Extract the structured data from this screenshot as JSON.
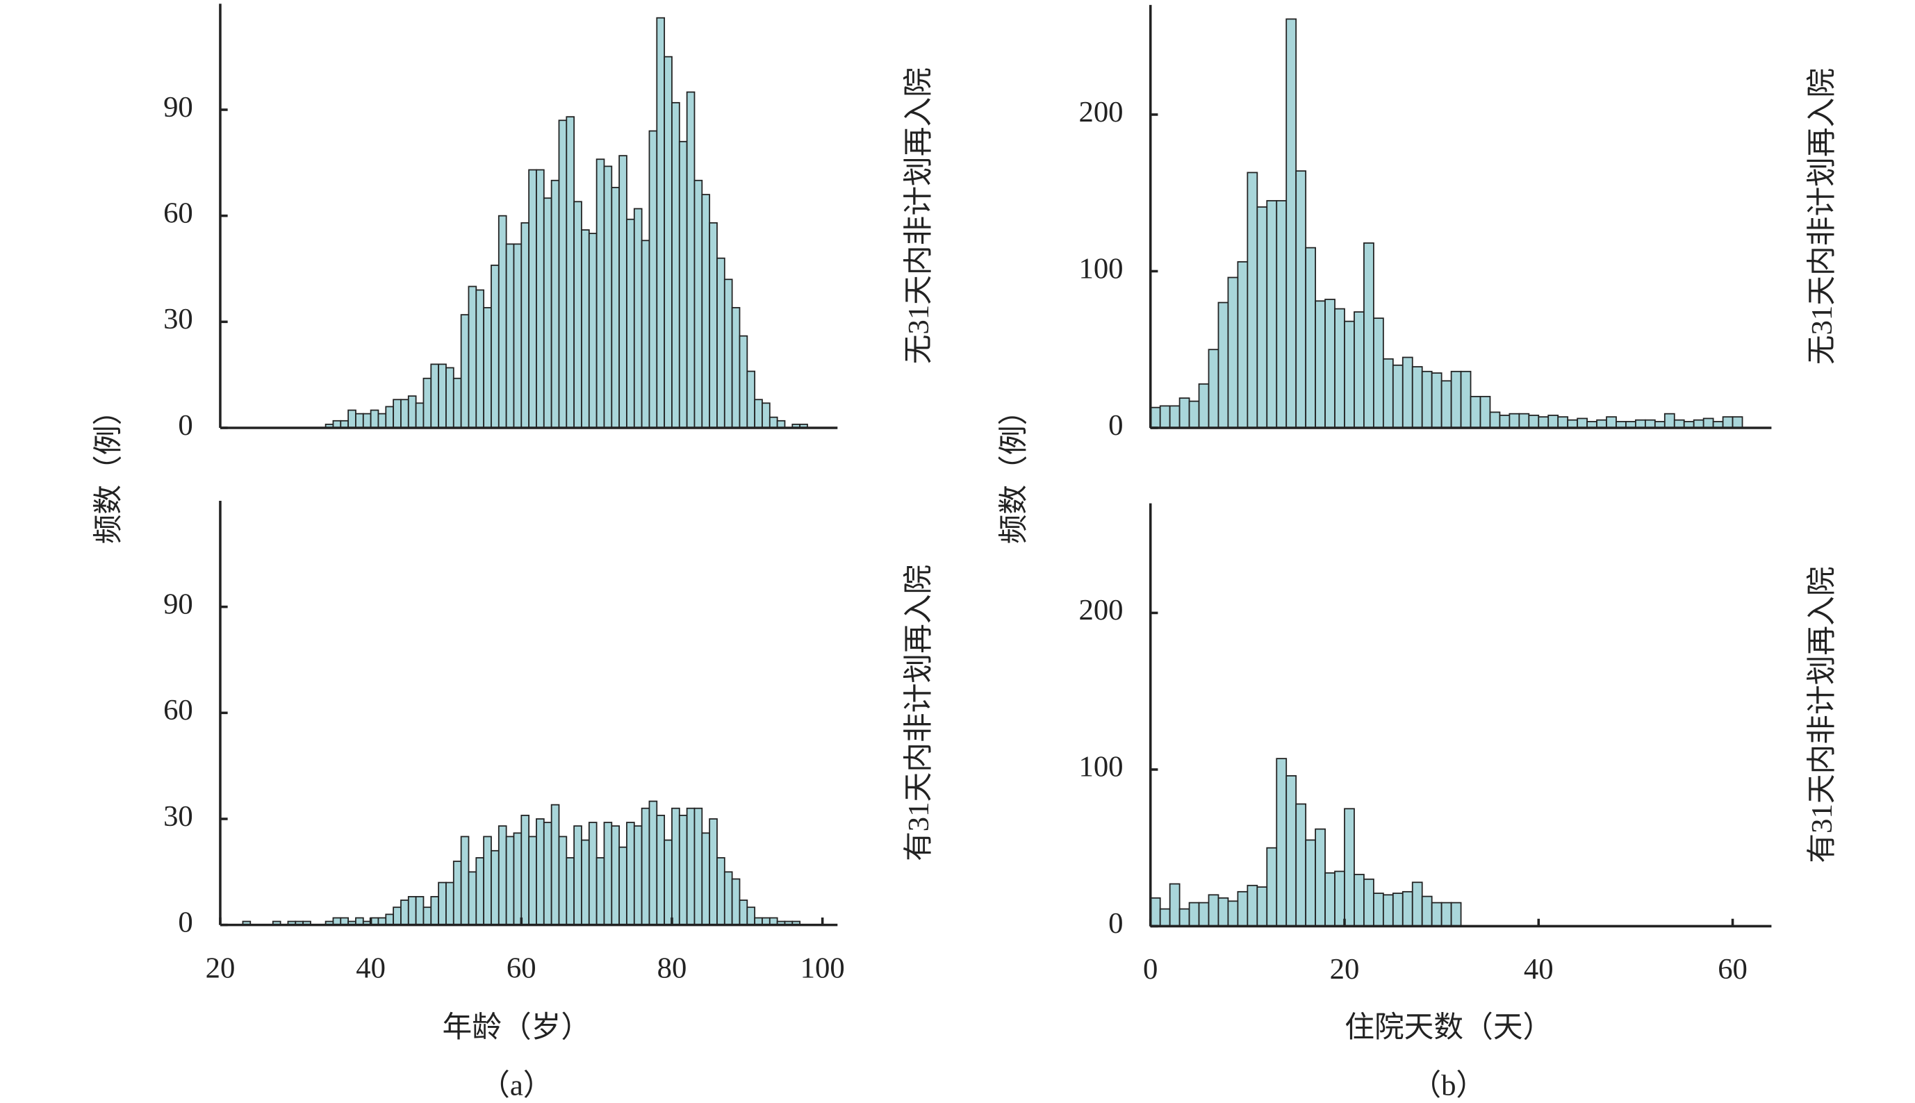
{
  "chart_data": [
    {
      "type": "histogram",
      "title": "无31天内非计划再入院",
      "ylabel": "频数（例）",
      "color": "#a9d6da",
      "bins": [
        20,
        21,
        22,
        23,
        24,
        25,
        26,
        27,
        28,
        29,
        30,
        31,
        32,
        33,
        34,
        35,
        36,
        37,
        38,
        39,
        40,
        41,
        42,
        43,
        44,
        45,
        46,
        47,
        48,
        49,
        50,
        51,
        52,
        53,
        54,
        55,
        56,
        57,
        58,
        59,
        60,
        61,
        62,
        63,
        64,
        65,
        66,
        67,
        68,
        69,
        70,
        71,
        72,
        73,
        74,
        75,
        76,
        77,
        78,
        79,
        80,
        81,
        82,
        83,
        84,
        85,
        86,
        87,
        88,
        89,
        90,
        91,
        92,
        93,
        94,
        95,
        96,
        97,
        98,
        99,
        100
      ],
      "values": [
        0,
        0,
        0,
        0,
        0,
        0,
        0,
        0,
        0,
        0,
        0,
        0,
        0,
        0,
        1,
        2,
        2,
        5,
        4,
        4,
        5,
        4,
        6,
        8,
        8,
        9,
        7,
        14,
        18,
        18,
        17,
        14,
        32,
        40,
        39,
        34,
        46,
        60,
        52,
        52,
        58,
        73,
        73,
        65,
        70,
        87,
        88,
        64,
        56,
        55,
        76,
        74,
        68,
        77,
        59,
        62,
        53,
        84,
        116,
        105,
        92,
        81,
        95,
        70,
        66,
        58,
        48,
        42,
        34,
        26,
        16,
        8,
        7,
        3,
        2,
        0,
        1,
        1,
        0,
        0
      ],
      "xlim": [
        20,
        102
      ],
      "ylim": [
        0,
        120
      ],
      "yticks": [
        0,
        30,
        60,
        90
      ]
    },
    {
      "type": "histogram",
      "title": "有31天内非计划再入院",
      "xlabel": "年龄（岁）",
      "caption": "（a）",
      "color": "#a9d6da",
      "bins": [
        20,
        21,
        22,
        23,
        24,
        25,
        26,
        27,
        28,
        29,
        30,
        31,
        32,
        33,
        34,
        35,
        36,
        37,
        38,
        39,
        40,
        41,
        42,
        43,
        44,
        45,
        46,
        47,
        48,
        49,
        50,
        51,
        52,
        53,
        54,
        55,
        56,
        57,
        58,
        59,
        60,
        61,
        62,
        63,
        64,
        65,
        66,
        67,
        68,
        69,
        70,
        71,
        72,
        73,
        74,
        75,
        76,
        77,
        78,
        79,
        80,
        81,
        82,
        83,
        84,
        85,
        86,
        87,
        88,
        89,
        90,
        91,
        92,
        93,
        94,
        95,
        96,
        97,
        98,
        99,
        100
      ],
      "values": [
        0,
        0,
        0,
        1,
        0,
        0,
        0,
        1,
        0,
        1,
        1,
        1,
        0,
        0,
        1,
        2,
        2,
        1,
        2,
        1,
        2,
        2,
        3,
        5,
        7,
        8,
        8,
        5,
        8,
        12,
        12,
        18,
        25,
        15,
        19,
        25,
        21,
        28,
        25,
        26,
        31,
        25,
        30,
        29,
        34,
        25,
        19,
        28,
        24,
        29,
        19,
        29,
        28,
        22,
        29,
        28,
        33,
        35,
        31,
        24,
        33,
        31,
        33,
        33,
        26,
        30,
        19,
        15,
        13,
        7,
        5,
        2,
        2,
        2,
        1,
        1,
        1,
        0,
        0,
        0
      ],
      "xlim": [
        20,
        102
      ],
      "ylim": [
        0,
        120
      ],
      "xticks": [
        20,
        40,
        60,
        80,
        100
      ],
      "yticks": [
        0,
        30,
        60,
        90
      ]
    },
    {
      "type": "histogram",
      "title": "无31天内非计划再入院",
      "ylabel": "频数（例）",
      "color": "#a9d6da",
      "bins": [
        0,
        1,
        2,
        3,
        4,
        5,
        6,
        7,
        8,
        9,
        10,
        11,
        12,
        13,
        14,
        15,
        16,
        17,
        18,
        19,
        20,
        21,
        22,
        23,
        24,
        25,
        26,
        27,
        28,
        29,
        30,
        31,
        32,
        33,
        34,
        35,
        36,
        37,
        38,
        39,
        40,
        41,
        42,
        43,
        44,
        45,
        46,
        47,
        48,
        49,
        50,
        51,
        52,
        53,
        54,
        55,
        56,
        57,
        58,
        59,
        60,
        61
      ],
      "values": [
        13,
        14,
        14,
        19,
        17,
        28,
        50,
        80,
        96,
        106,
        163,
        141,
        145,
        145,
        261,
        164,
        115,
        81,
        82,
        76,
        68,
        74,
        118,
        70,
        44,
        40,
        45,
        39,
        36,
        35,
        30,
        36,
        36,
        20,
        20,
        10,
        8,
        9,
        9,
        8,
        7,
        8,
        7,
        5,
        6,
        4,
        5,
        7,
        4,
        4,
        5,
        5,
        4,
        9,
        5,
        4,
        5,
        6,
        4,
        7,
        7
      ],
      "xlim": [
        0,
        64
      ],
      "ylim": [
        0,
        270
      ],
      "yticks": [
        0,
        100,
        200
      ]
    },
    {
      "type": "histogram",
      "title": "有31天内非计划再入院",
      "xlabel": "住院天数（天）",
      "caption": "（b）",
      "color": "#a9d6da",
      "bins": [
        0,
        1,
        2,
        3,
        4,
        5,
        6,
        7,
        8,
        9,
        10,
        11,
        12,
        13,
        14,
        15,
        16,
        17,
        18,
        19,
        20,
        21,
        22,
        23,
        24,
        25,
        26,
        27,
        28,
        29,
        30,
        31,
        32
      ],
      "values": [
        18,
        11,
        27,
        11,
        15,
        15,
        20,
        18,
        16,
        22,
        26,
        25,
        50,
        107,
        96,
        78,
        55,
        62,
        34,
        35,
        75,
        33,
        30,
        21,
        20,
        21,
        22,
        28,
        19,
        15,
        15,
        15
      ],
      "xlim": [
        0,
        64
      ],
      "ylim": [
        0,
        270
      ],
      "xticks": [
        0,
        20,
        40,
        60
      ],
      "yticks": [
        0,
        100,
        200
      ]
    }
  ]
}
